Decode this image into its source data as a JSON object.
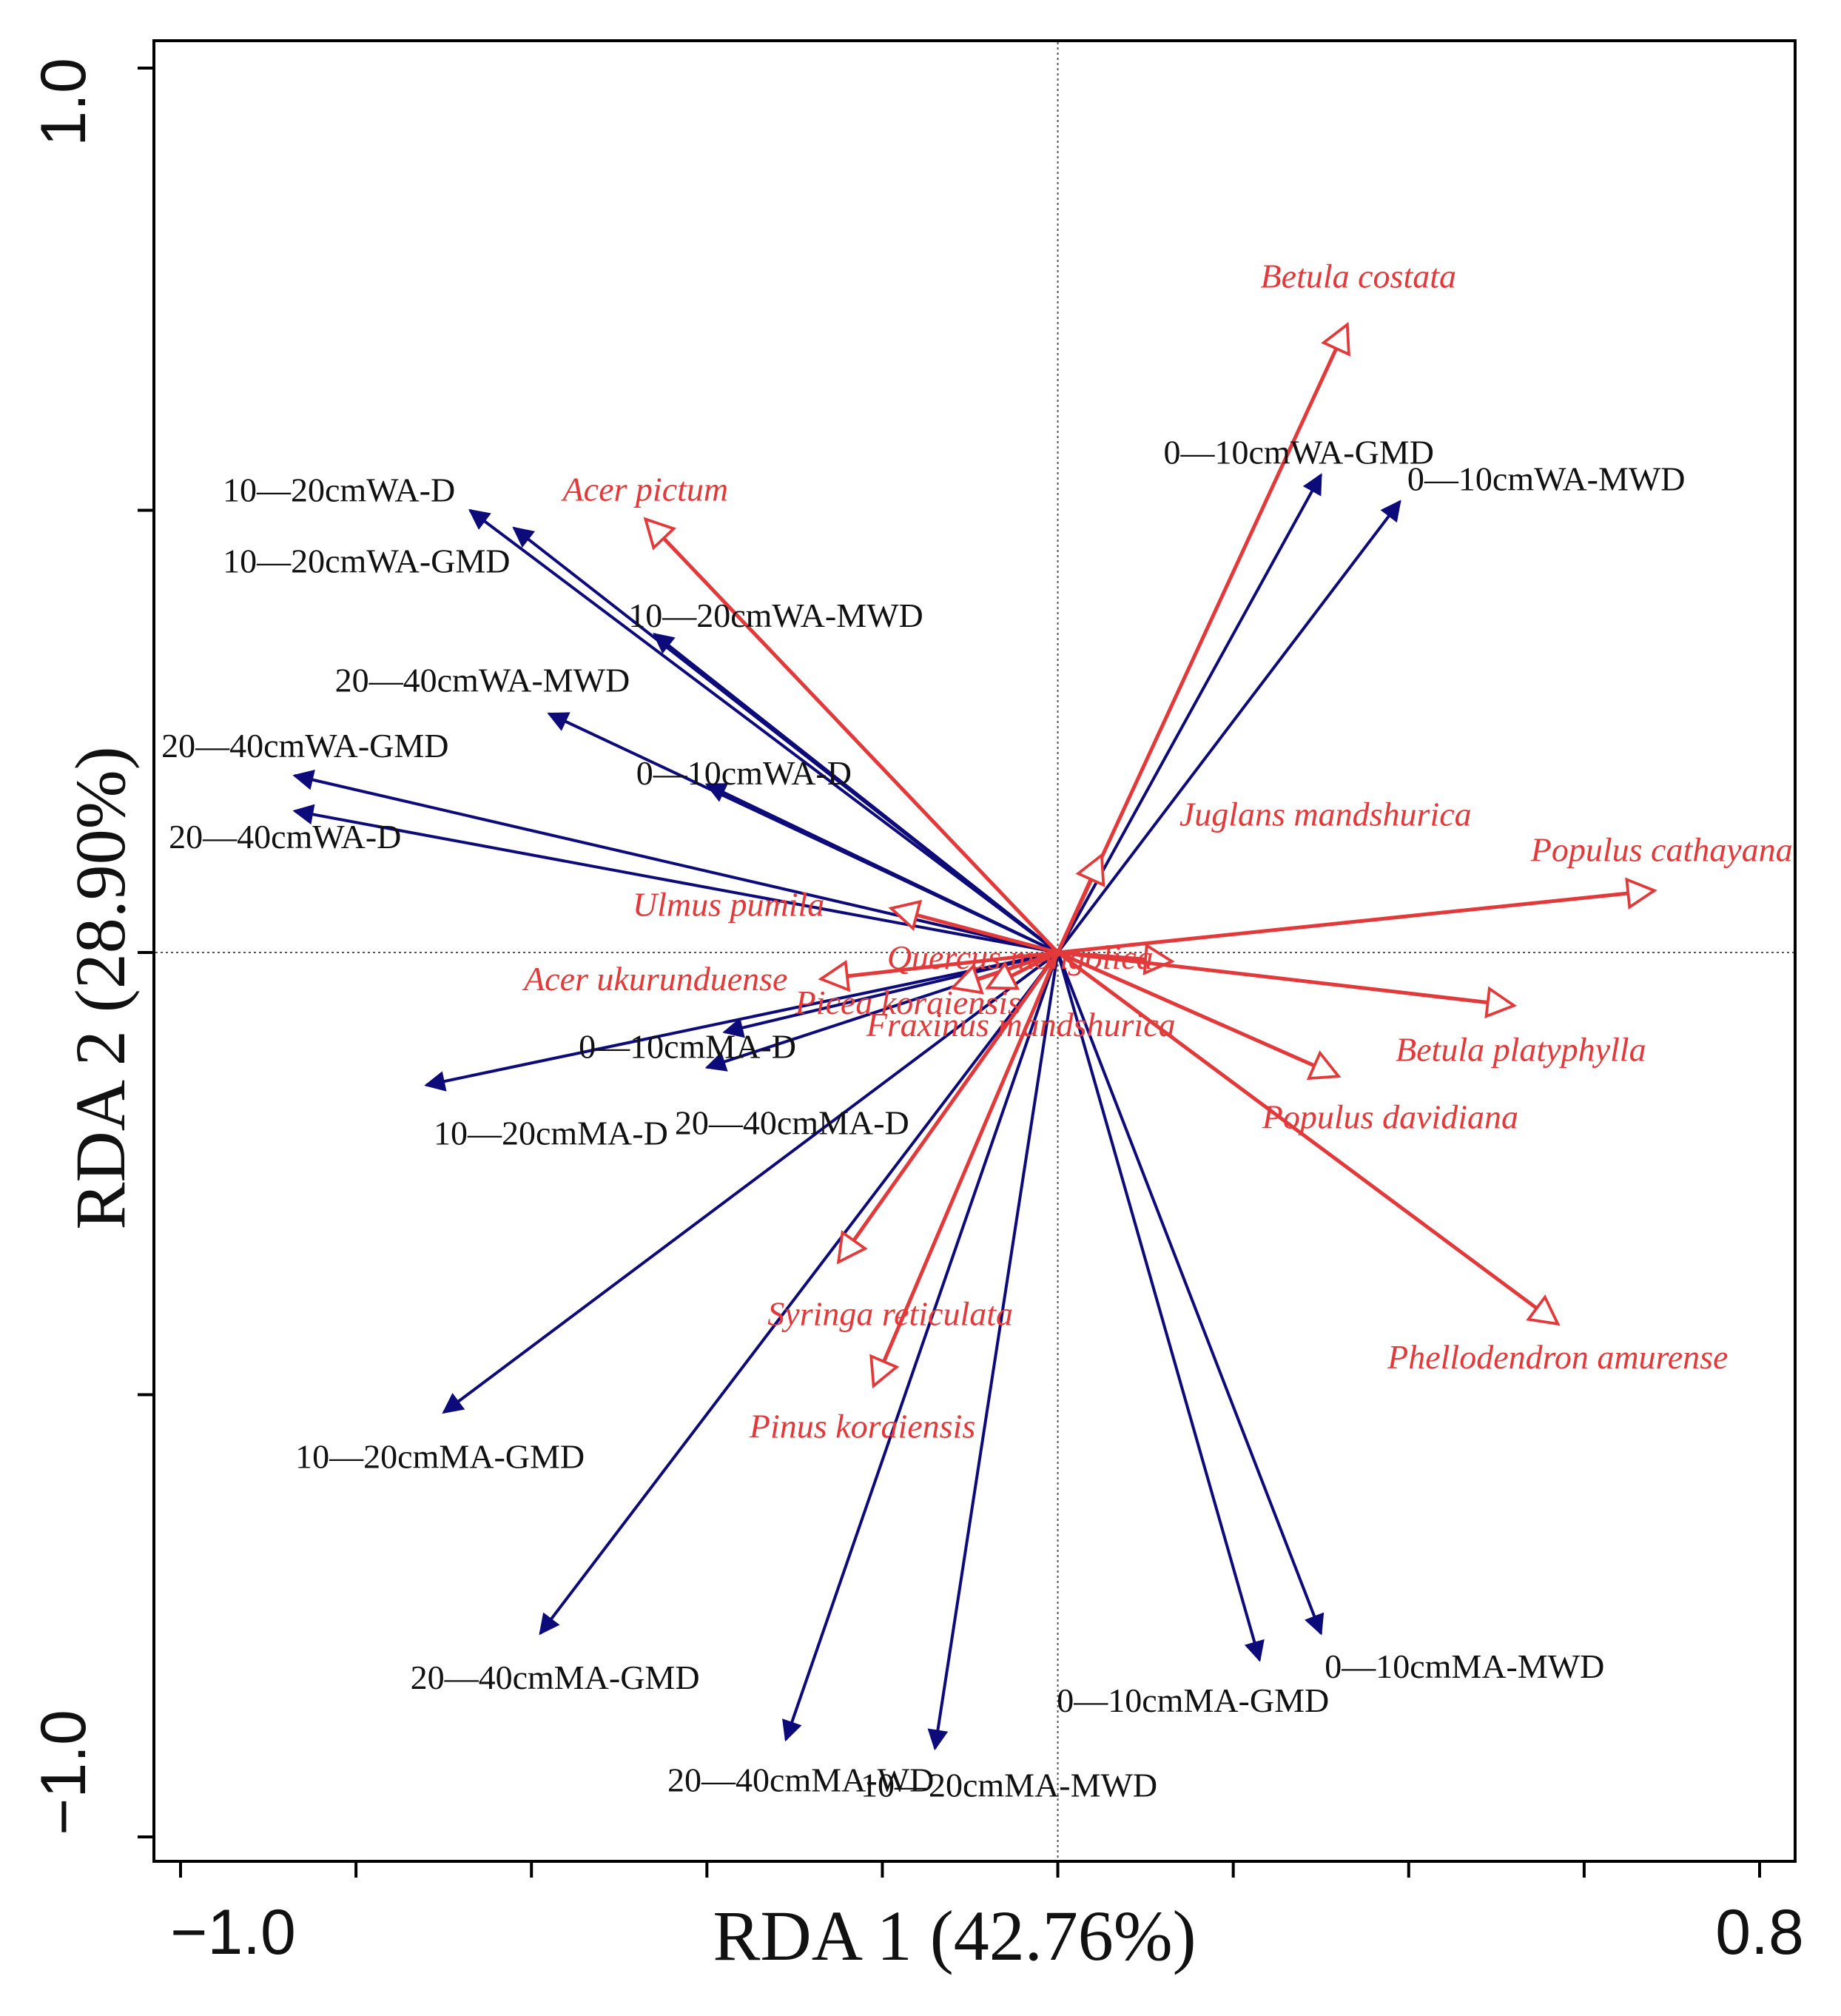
{
  "chart_data": {
    "type": "scatter",
    "xlabel": "RDA 1 (42.76%)",
    "ylabel": "RDA 2 (28.90%)",
    "xlim": [
      -1.0,
      0.8
    ],
    "ylim": [
      -1.0,
      1.0
    ],
    "x_tick_labels": [
      "-1.0",
      "0.8"
    ],
    "y_tick_labels": [
      "1.0",
      "-1.0"
    ],
    "reference_lines": "dotted lines at x = 0 and y = 0",
    "colors": {
      "soil_vectors": "#0d0a7a",
      "species_vectors": "#e2393b"
    },
    "series": [
      {
        "group": "soil_aggregate_vectors",
        "arrowhead": "filled",
        "points": [
          {
            "label": "10—20cmWA-D",
            "x": -0.67,
            "y": 0.5
          },
          {
            "label": "10—20cmWA-GMD",
            "x": -0.62,
            "y": 0.48
          },
          {
            "label": "10—20cmWA-MWD",
            "x": -0.46,
            "y": 0.36
          },
          {
            "label": "20—40cmWA-MWD",
            "x": -0.58,
            "y": 0.27
          },
          {
            "label": "0—10cmWA-D",
            "x": -0.4,
            "y": 0.19
          },
          {
            "label": "20—40cmWA-GMD",
            "x": -0.87,
            "y": 0.2
          },
          {
            "label": "20—40cmWA-D",
            "x": -0.87,
            "y": 0.16
          },
          {
            "label": "0—10cmMA-D",
            "x": -0.38,
            "y": -0.09
          },
          {
            "label": "10—20cmMA-D",
            "x": -0.72,
            "y": -0.15
          },
          {
            "label": "20—40cmMA-D",
            "x": -0.4,
            "y": -0.13
          },
          {
            "label": "10—20cmMA-GMD",
            "x": -0.7,
            "y": -0.52
          },
          {
            "label": "20—40cmMA-GMD",
            "x": -0.59,
            "y": -0.77
          },
          {
            "label": "20—40cmMA-WD",
            "x": -0.31,
            "y": -0.89
          },
          {
            "label": "10—20cmMA-MWD",
            "x": -0.14,
            "y": -0.9
          },
          {
            "label": "0—10cmMA-GMD",
            "x": 0.23,
            "y": -0.8
          },
          {
            "label": "0—10cmMA-MWD",
            "x": 0.3,
            "y": -0.77
          },
          {
            "label": "0—10cmWA-GMD",
            "x": 0.3,
            "y": 0.54
          },
          {
            "label": "0—10cmWA-MWD",
            "x": 0.39,
            "y": 0.51
          }
        ]
      },
      {
        "group": "tree_species_vectors",
        "arrowhead": "open",
        "points": [
          {
            "label": "Betula costata",
            "x": 0.33,
            "y": 0.71
          },
          {
            "label": "Acer pictum",
            "x": -0.47,
            "y": 0.49
          },
          {
            "label": "Juglans mandshurica",
            "x": 0.05,
            "y": 0.11
          },
          {
            "label": "Populus cathayana",
            "x": 0.68,
            "y": 0.07
          },
          {
            "label": "Ulmus pumila",
            "x": -0.19,
            "y": 0.05
          },
          {
            "label": "Acer ukurunduense",
            "x": -0.27,
            "y": -0.03
          },
          {
            "label": "Picea koraiensis",
            "x": -0.12,
            "y": -0.04
          },
          {
            "label": "Fraxinus mandshurica",
            "x": -0.08,
            "y": -0.04
          },
          {
            "label": "Quercus mongolica",
            "x": 0.13,
            "y": -0.01
          },
          {
            "label": "Betula platyphylla",
            "x": 0.52,
            "y": -0.06
          },
          {
            "label": "Populus davidiana",
            "x": 0.32,
            "y": -0.14
          },
          {
            "label": "Phellodendron amurense",
            "x": 0.57,
            "y": -0.42
          },
          {
            "label": "Syringa reticulata",
            "x": -0.25,
            "y": -0.35
          },
          {
            "label": "Pinus koraiensis",
            "x": -0.21,
            "y": -0.49
          }
        ]
      }
    ]
  }
}
